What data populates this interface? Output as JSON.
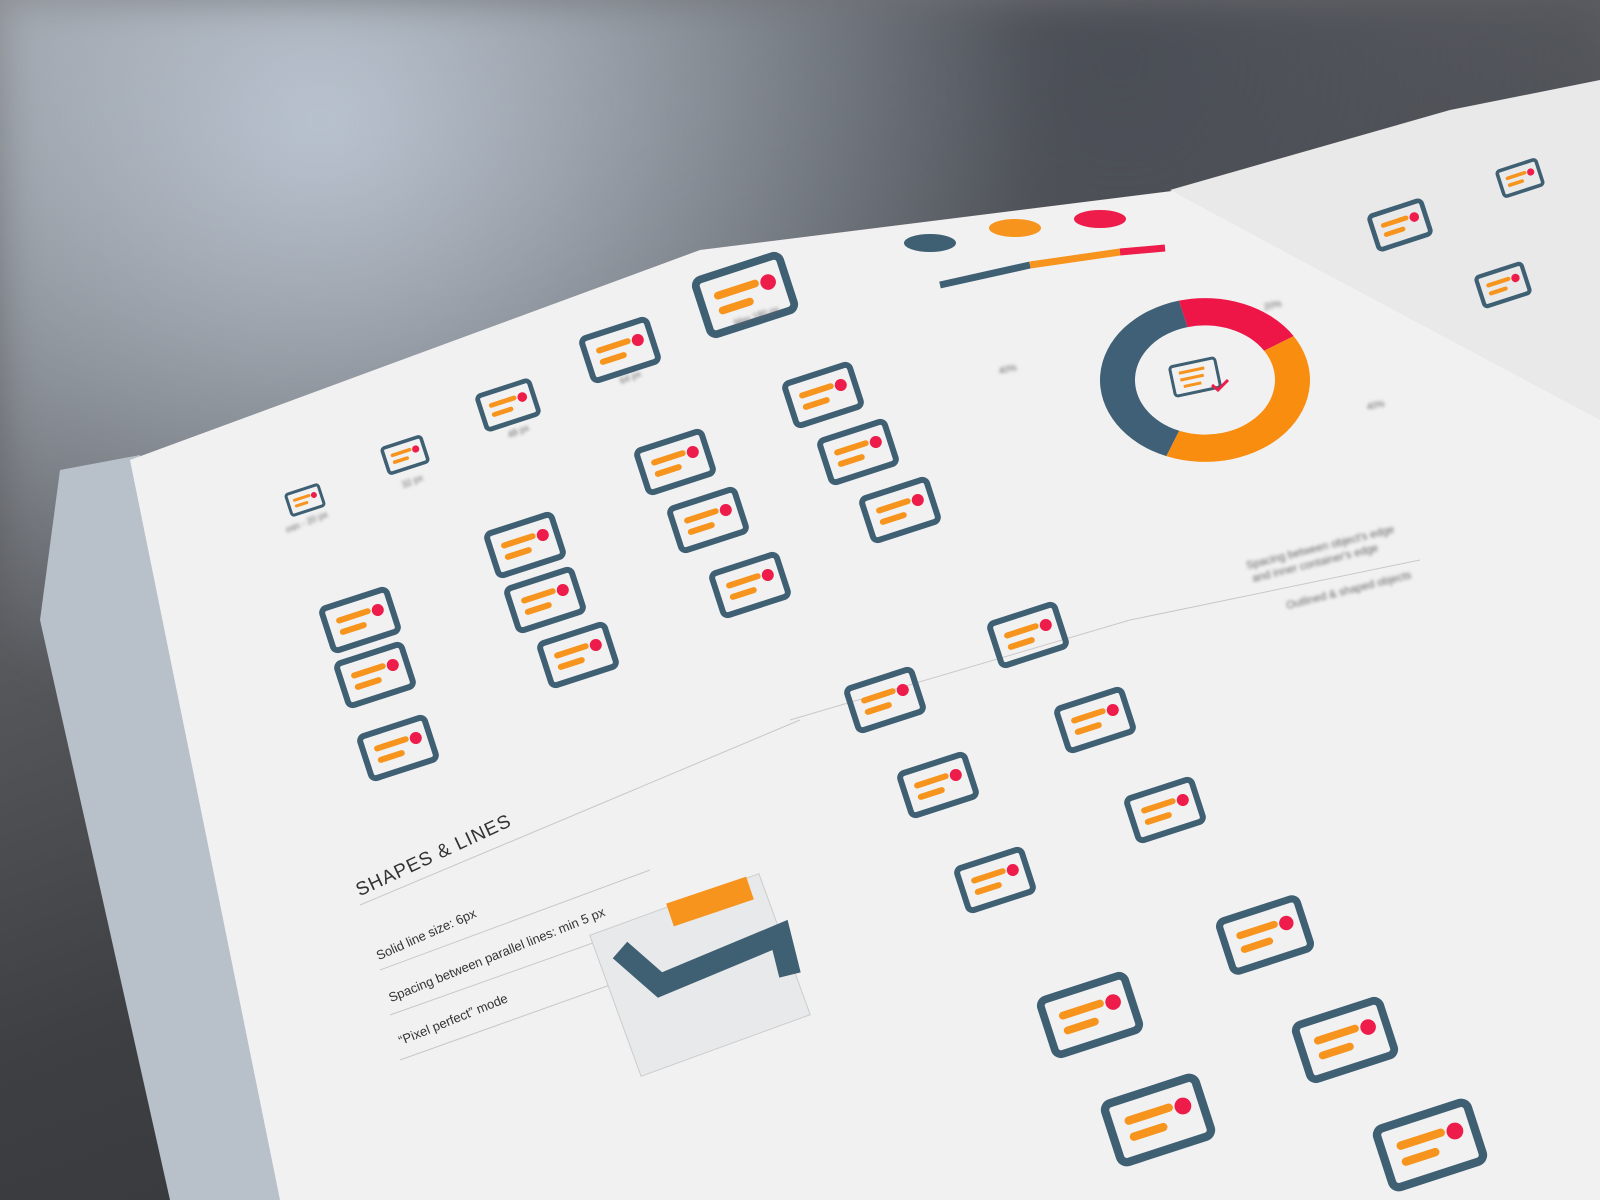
{
  "section": {
    "title": "SHAPES & LINES",
    "rules": [
      "Solid line size: 6px",
      "Spacing between parallel lines: min 5 px",
      "“Pixel perfect” mode"
    ]
  },
  "right_notes": [
    "Spacing between object's edge",
    "and inner container's edge",
    "Outlined & shaped objects"
  ],
  "size_labels": [
    "min - 20 px",
    "32 px",
    "48 px",
    "64 px",
    "Max 180 px"
  ],
  "donut": {
    "labels": [
      "40%",
      "20%",
      "40%"
    ],
    "values": [
      40,
      20,
      40
    ],
    "colors": [
      "#3f6076",
      "#ee1547",
      "#f98d10"
    ]
  },
  "colors": {
    "teal": "#3f5f73",
    "orange": "#f7941d",
    "red": "#ee1c4a",
    "paper": "#f1f1f2"
  }
}
